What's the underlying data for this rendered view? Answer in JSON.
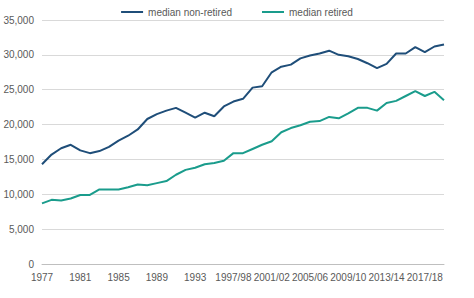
{
  "chart_data": {
    "type": "line",
    "categories": [
      "1977",
      null,
      null,
      null,
      "1981",
      null,
      null,
      null,
      "1985",
      null,
      null,
      null,
      "1989",
      null,
      null,
      null,
      "1993",
      null,
      null,
      null,
      "1997/98",
      null,
      null,
      null,
      "2001/02",
      null,
      null,
      null,
      "2005/06",
      null,
      null,
      null,
      "2009/10",
      null,
      null,
      null,
      "2013/14",
      null,
      null,
      null,
      "2017/18",
      null,
      null
    ],
    "series": [
      {
        "name": "median non-retired",
        "color": "#1f4e79",
        "values": [
          14300,
          15700,
          16600,
          17100,
          16300,
          15900,
          16200,
          16800,
          17700,
          18400,
          19300,
          20800,
          21500,
          22000,
          22400,
          21700,
          21000,
          21700,
          21200,
          22600,
          23300,
          23700,
          25300,
          25500,
          27500,
          28300,
          28600,
          29500,
          29900,
          30200,
          30600,
          30000,
          29800,
          29400,
          28800,
          28100,
          28700,
          30200,
          30200,
          31100,
          30400,
          31200,
          31500
        ]
      },
      {
        "name": "median retired",
        "color": "#1a9c8c",
        "values": [
          8700,
          9200,
          9100,
          9400,
          9900,
          9900,
          10700,
          10700,
          10700,
          11000,
          11400,
          11300,
          11600,
          11900,
          12800,
          13500,
          13800,
          14300,
          14500,
          14800,
          15900,
          15900,
          16500,
          17100,
          17600,
          18900,
          19500,
          19900,
          20400,
          20500,
          21100,
          20900,
          21600,
          22400,
          22400,
          22000,
          23100,
          23400,
          24100,
          24800,
          24100,
          24700,
          23500
        ]
      }
    ],
    "ylim": [
      0,
      35000
    ],
    "yticks": [
      0,
      5000,
      10000,
      15000,
      20000,
      25000,
      30000,
      35000
    ],
    "grid": true,
    "legend": "top"
  }
}
